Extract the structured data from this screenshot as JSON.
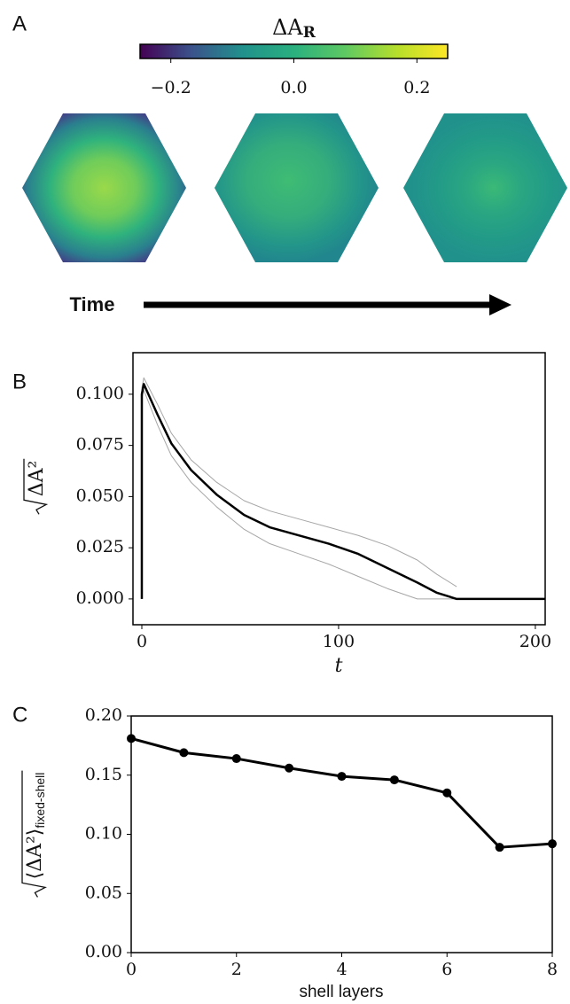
{
  "chart_data": [
    {
      "type": "colorbar",
      "panel": "A",
      "label": "ΔA",
      "label_sub": "R",
      "xlim": [
        -0.25,
        0.25
      ],
      "xticks": [
        {
          "value": -0.2,
          "label": "−0.2"
        },
        {
          "value": 0,
          "label": "0.0"
        },
        {
          "value": 0.2,
          "label": "0.2"
        }
      ],
      "colormap": [
        "#440154",
        "#3b528b",
        "#21918c",
        "#2ab07f",
        "#5ec962",
        "#b5de2b",
        "#fde725"
      ],
      "time_label": "Time"
    },
    {
      "type": "line",
      "panel": "B",
      "y_label": "ΔA²",
      "x_label": "t",
      "x": [
        0,
        0,
        1,
        8,
        15,
        25,
        38,
        52,
        65,
        80,
        95,
        110,
        125,
        140,
        150,
        160,
        205
      ],
      "series": [
        {
          "color": "#a6a6a6",
          "linewidth": 1,
          "values": [
            0,
            0.103,
            0.108,
            0.095,
            0.081,
            0.068,
            0.057,
            0.048,
            0.043,
            0.039,
            0.035,
            0.031,
            0.026,
            0.019,
            0.012,
            0.006,
            null
          ]
        },
        {
          "color": "#a6a6a6",
          "linewidth": 1,
          "values": [
            0,
            0.098,
            0.102,
            0.085,
            0.07,
            0.057,
            0.045,
            0.034,
            0.027,
            0.022,
            0.017,
            0.011,
            0.005,
            0,
            0,
            0,
            null
          ]
        },
        {
          "color": "#000000",
          "linewidth": 2.5,
          "values": [
            0,
            0.1,
            0.105,
            0.09,
            0.076,
            0.063,
            0.051,
            0.041,
            0.035,
            0.031,
            0.027,
            0.022,
            0.015,
            0.008,
            0.003,
            0,
            0
          ]
        }
      ],
      "xlim": [
        -4.5,
        205
      ],
      "ylim": [
        -0.0126,
        0.1203
      ],
      "xticks": [
        0,
        100,
        200
      ],
      "yticks": [
        {
          "value": 0,
          "label": "0.000"
        },
        {
          "value": 0.025,
          "label": "0.025"
        },
        {
          "value": 0.05,
          "label": "0.050"
        },
        {
          "value": 0.075,
          "label": "0.075"
        },
        {
          "value": 0.1,
          "label": "0.100"
        }
      ]
    },
    {
      "type": "line",
      "panel": "C",
      "y_label": "⟨ΔA²⟩",
      "y_label_sub": "fixed-shell",
      "x_label": "shell layers",
      "x": [
        0,
        1,
        2,
        3,
        4,
        5,
        6,
        7,
        8
      ],
      "series": [
        {
          "color": "#000000",
          "linewidth": 3,
          "marker": true,
          "values": [
            0.181,
            0.169,
            0.164,
            0.156,
            0.149,
            0.146,
            0.135,
            0.089,
            0.092
          ]
        }
      ],
      "xlim": [
        0,
        8
      ],
      "ylim": [
        0,
        0.2
      ],
      "xticks": [
        0,
        2,
        4,
        6,
        8
      ],
      "yticks": [
        {
          "value": 0,
          "label": "0.00"
        },
        {
          "value": 0.05,
          "label": "0.05"
        },
        {
          "value": 0.1,
          "label": "0.10"
        },
        {
          "value": 0.15,
          "label": "0.15"
        },
        {
          "value": 0.2,
          "label": "0.20"
        }
      ]
    }
  ]
}
